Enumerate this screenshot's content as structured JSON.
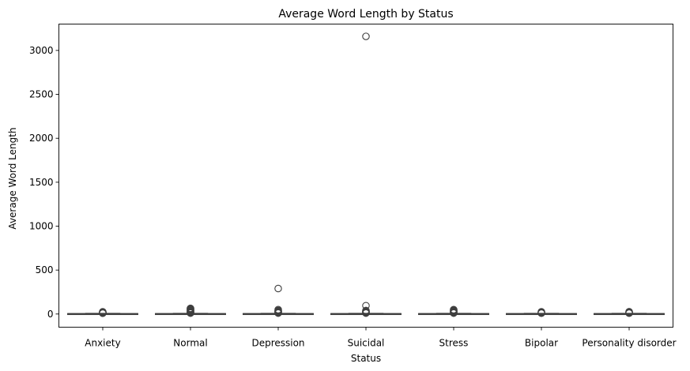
{
  "chart_data": {
    "type": "box",
    "title": "Average Word Length by Status",
    "xlabel": "Status",
    "ylabel": "Average Word Length",
    "ylim": [
      -150,
      3300
    ],
    "yticks": [
      0,
      500,
      1000,
      1500,
      2000,
      2500,
      3000
    ],
    "categories": [
      "Anxiety",
      "Normal",
      "Depression",
      "Suicidal",
      "Stress",
      "Bipolar",
      "Personality disorder"
    ],
    "box_color": "#ffffff",
    "line_color": "#3f3f3f",
    "grid": false,
    "legend": "none",
    "boxes": [
      {
        "category": "Anxiety",
        "whisker_low": 0,
        "q1": 3,
        "median": 4,
        "q3": 5,
        "whisker_high": 8,
        "outliers": [
          9,
          10,
          12,
          14,
          16,
          18,
          20,
          22,
          25
        ]
      },
      {
        "category": "Normal",
        "whisker_low": 0,
        "q1": 3,
        "median": 4,
        "q3": 5,
        "whisker_high": 8,
        "outliers": [
          10,
          14,
          18,
          22,
          27,
          31,
          36,
          40,
          45,
          50,
          55,
          60,
          65
        ]
      },
      {
        "category": "Depression",
        "whisker_low": 0,
        "q1": 3,
        "median": 4,
        "q3": 5,
        "whisker_high": 8,
        "outliers": [
          10,
          15,
          20,
          25,
          30,
          35,
          40,
          50,
          290
        ]
      },
      {
        "category": "Suicidal",
        "whisker_low": 0,
        "q1": 3,
        "median": 4,
        "q3": 5,
        "whisker_high": 8,
        "outliers": [
          10,
          15,
          20,
          25,
          30,
          35,
          40,
          95,
          3160
        ]
      },
      {
        "category": "Stress",
        "whisker_low": 0,
        "q1": 3,
        "median": 4,
        "q3": 5,
        "whisker_high": 8,
        "outliers": [
          10,
          15,
          20,
          25,
          30,
          35,
          40,
          45,
          50
        ]
      },
      {
        "category": "Bipolar",
        "whisker_low": 0,
        "q1": 3,
        "median": 4,
        "q3": 5,
        "whisker_high": 8,
        "outliers": [
          9,
          12,
          15,
          18,
          22,
          25
        ]
      },
      {
        "category": "Personality disorder",
        "whisker_low": 0,
        "q1": 3,
        "median": 4,
        "q3": 5,
        "whisker_high": 8,
        "outliers": [
          9,
          12,
          15,
          18,
          22,
          26
        ]
      }
    ]
  }
}
